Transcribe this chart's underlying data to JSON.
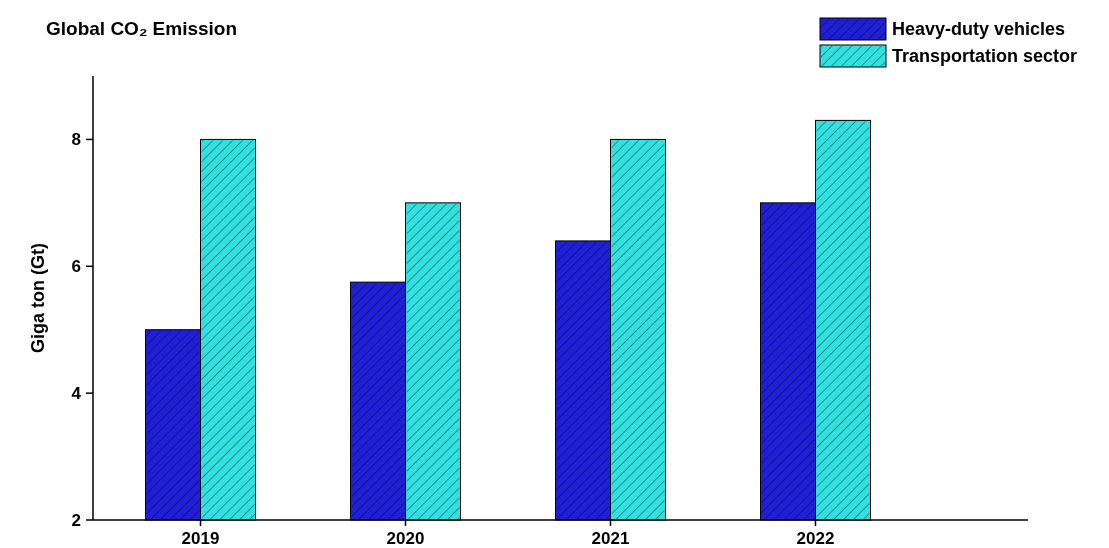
{
  "chart_data": {
    "type": "bar",
    "title": "Global CO₂ Emission",
    "ylabel": "Giga ton (Gt)",
    "categories": [
      "2019",
      "2020",
      "2021",
      "2022"
    ],
    "series": [
      {
        "name": "Heavy-duty vehicles",
        "color": "#1f1fd6",
        "values": [
          5.0,
          5.75,
          6.4,
          7.0
        ]
      },
      {
        "name": "Transportation sector",
        "color": "#33e0e0",
        "values": [
          8.0,
          7.0,
          8.0,
          8.3
        ]
      }
    ],
    "ylim": [
      2,
      9
    ],
    "yticks": [
      2,
      4,
      6,
      8
    ],
    "grid": false,
    "legend": "top right"
  }
}
